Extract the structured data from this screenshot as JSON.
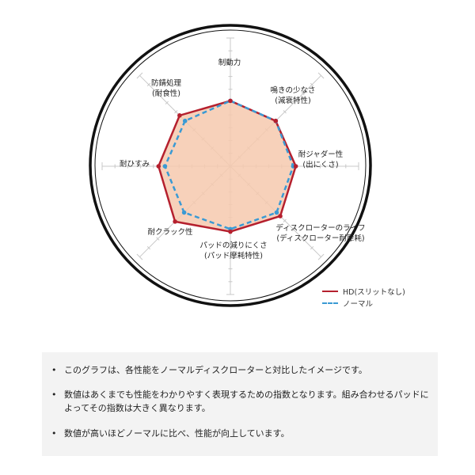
{
  "chart_data": {
    "type": "radar",
    "axes": [
      {
        "label": [
          "制動力"
        ]
      },
      {
        "label": [
          "鳴きの少なさ",
          "(減衰特性)"
        ]
      },
      {
        "label": [
          "耐ジャダー性",
          "(出にくさ)"
        ]
      },
      {
        "label": [
          "ディスクローターのライフ",
          "(ディスクローター耐摩耗)"
        ]
      },
      {
        "label": [
          "パッドの減りにくさ",
          "(パッド摩耗特性)"
        ]
      },
      {
        "label": [
          "耐クラック性"
        ]
      },
      {
        "label": [
          "耐ひすみ"
        ]
      },
      {
        "label": [
          "防錆処理",
          "(耐食性)"
        ]
      }
    ],
    "range": [
      0,
      10
    ],
    "series": [
      {
        "name": "HD(スリットなし)",
        "values": [
          5.1,
          5.0,
          5.1,
          5.5,
          5.1,
          6.1,
          5.6,
          5.6
        ],
        "color": "#b5202e",
        "style": "solid",
        "fill": "#f6c9ae"
      },
      {
        "name": "ノーマル",
        "values": [
          5.1,
          5.0,
          4.9,
          5.1,
          4.9,
          5.1,
          5.1,
          5.0
        ],
        "color": "#3a9ad4",
        "style": "dashed"
      }
    ],
    "grid": true,
    "legend_position": "bottom-right"
  },
  "notes": [
    "このグラフは、各性能をノーマルディスクローターと対比したイメージです。",
    "数値はあくまでも性能をわかりやすく表現するための指数となります。組み合わせるパッドによってその指数は大きく異なります。",
    "数値が高いほどノーマルに比べ、性能が向上しています。"
  ]
}
